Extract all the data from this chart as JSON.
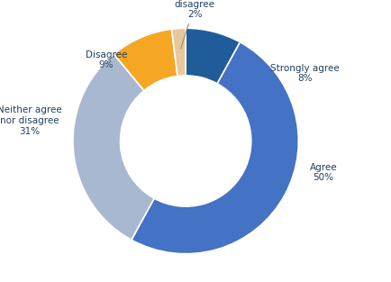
{
  "categories": [
    "Strongly agree",
    "Agree",
    "Neither agree\nnor disagree",
    "Disagree",
    "Strongly\ndisagree"
  ],
  "values": [
    8,
    50,
    31,
    9,
    2
  ],
  "colors": [
    "#1f5c99",
    "#4472c4",
    "#a8b8d0",
    "#f5a623",
    "#e8c89a"
  ],
  "label_color": "#243f60",
  "figsize": [
    4.34,
    3.13
  ],
  "dpi": 100
}
